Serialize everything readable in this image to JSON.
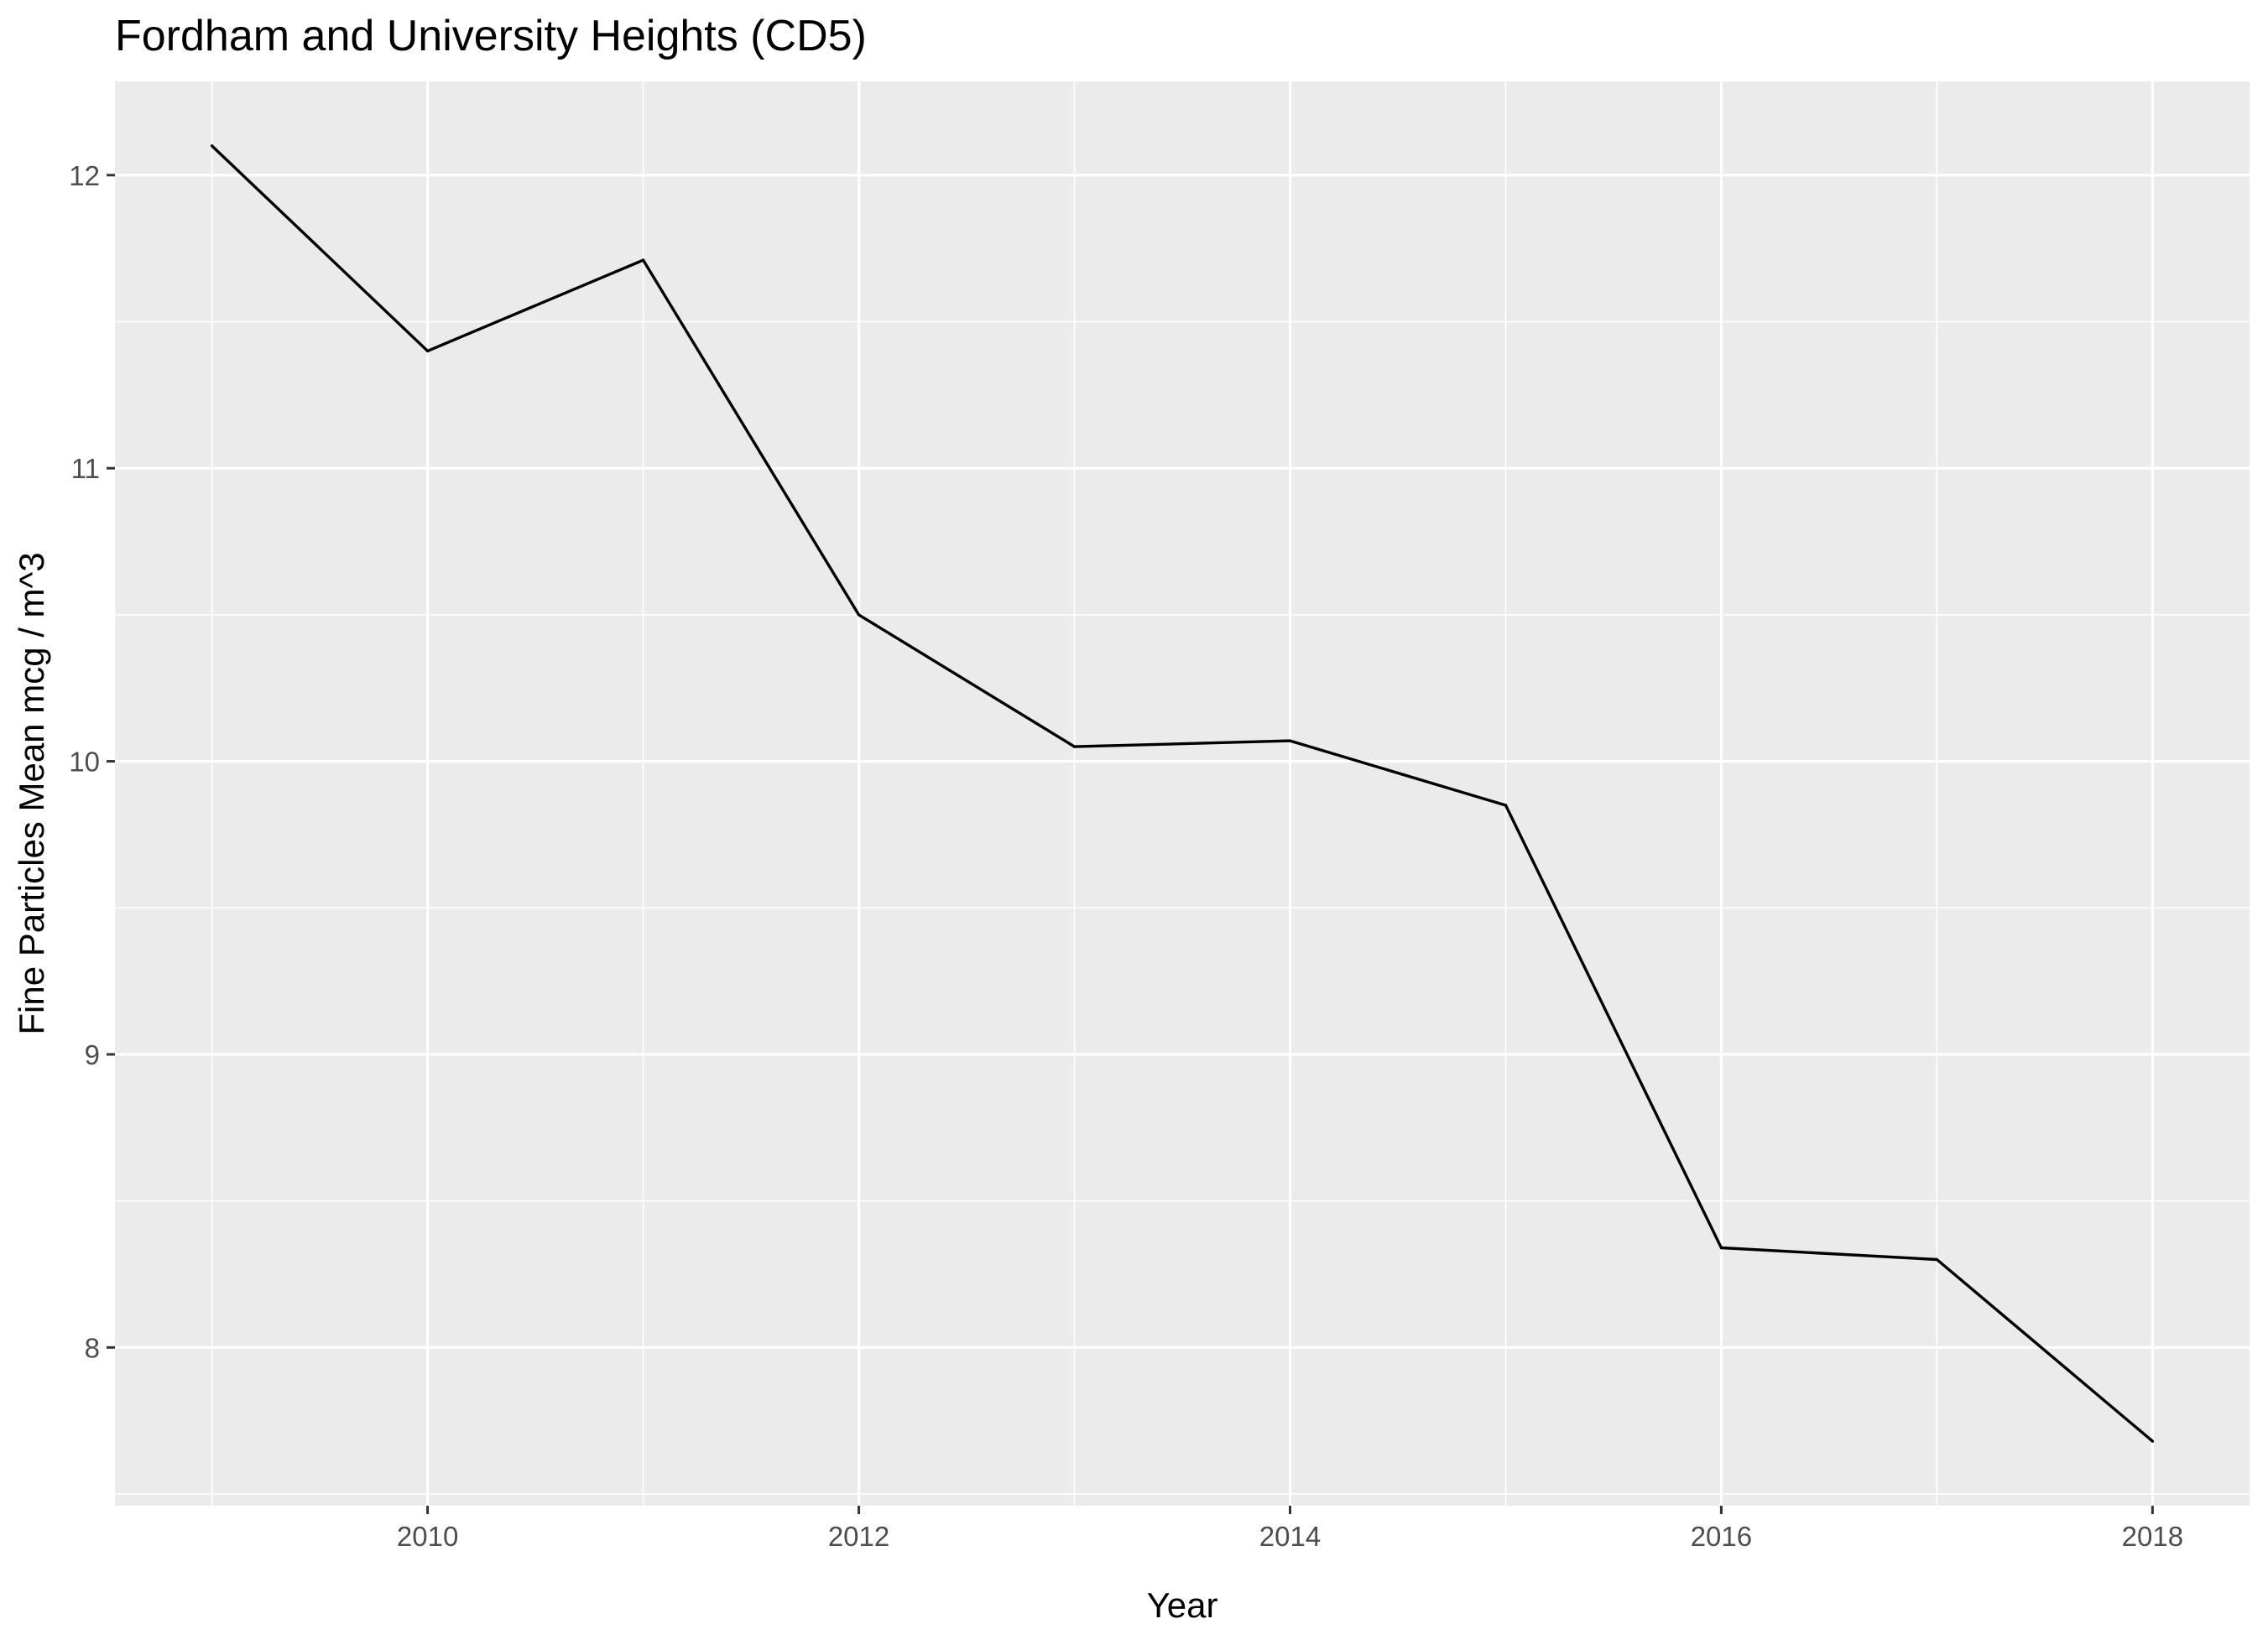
{
  "chart_data": {
    "type": "line",
    "title": "Fordham and University Heights (CD5)",
    "xlabel": "Year",
    "ylabel": "Fine Particles Mean mcg / m^3",
    "x": [
      2009,
      2010,
      2011,
      2012,
      2013,
      2014,
      2015,
      2016,
      2017,
      2018
    ],
    "series": [
      {
        "values": [
          12.1,
          11.4,
          11.71,
          10.5,
          10.05,
          10.07,
          9.85,
          8.34,
          8.3,
          7.68
        ]
      }
    ],
    "xlim": [
      2008.55,
      2018.45
    ],
    "ylim": [
      7.46,
      12.32
    ],
    "x_ticks": [
      2010,
      2012,
      2014,
      2016,
      2018
    ],
    "x_tick_labels": [
      "2010",
      "2012",
      "2014",
      "2016",
      "2018"
    ],
    "x_minor_ticks": [
      2009,
      2011,
      2013,
      2015,
      2017
    ],
    "y_ticks": [
      8,
      9,
      10,
      11,
      12
    ],
    "y_tick_labels": [
      "8",
      "9",
      "10",
      "11",
      "12"
    ],
    "y_minor_ticks": [
      7.5,
      8.5,
      9.5,
      10.5,
      11.5
    ],
    "grid": true,
    "legend": "none",
    "colors": {
      "panel": "#ebebeb",
      "grid": "#ffffff",
      "line": "#000000",
      "tick_text": "#4d4d4d"
    }
  }
}
